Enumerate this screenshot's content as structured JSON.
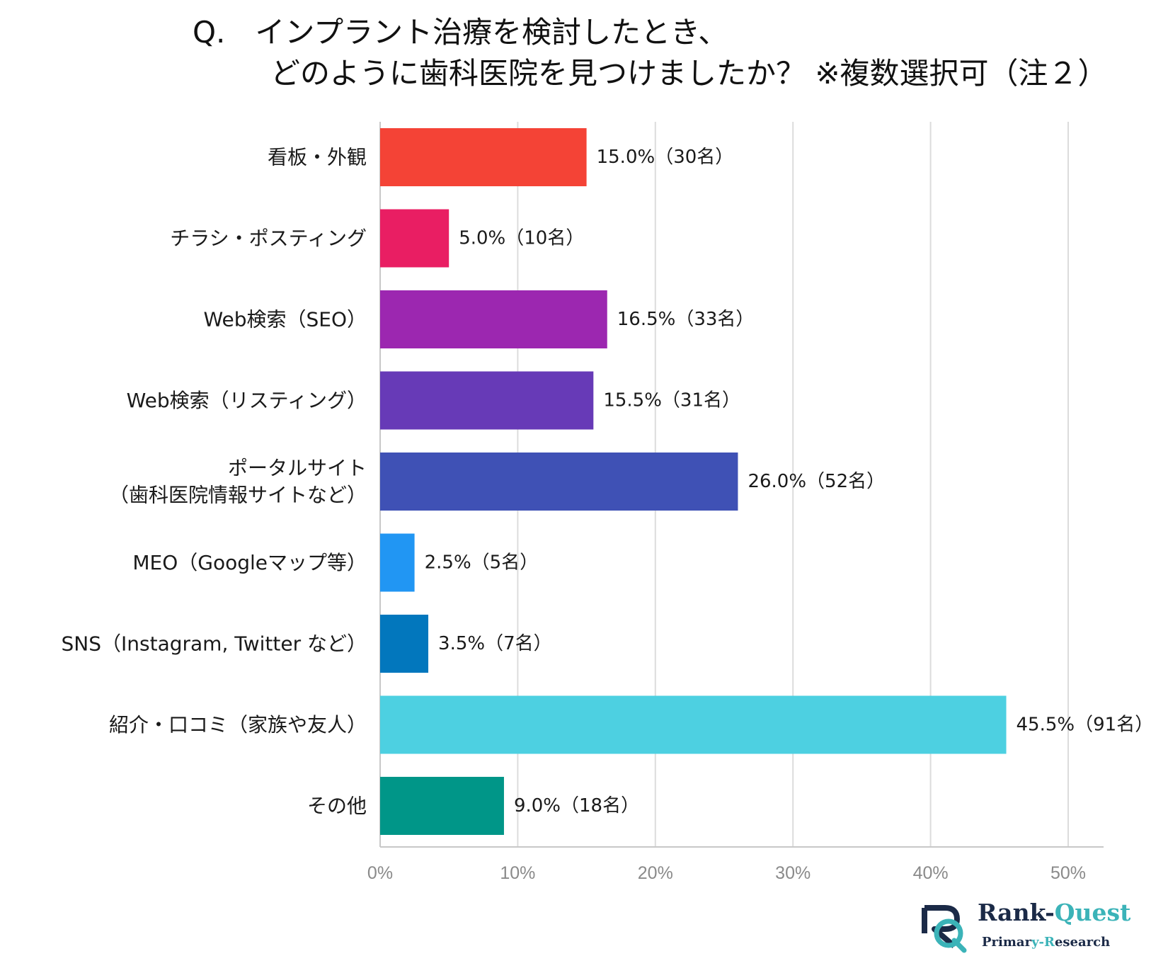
{
  "title": {
    "line1": "Q.　インプラント治療を検討したとき、",
    "line2": "どのように歯科医院を見つけましたか？ ※複数選択可（注２）"
  },
  "chart_data": {
    "type": "bar",
    "orientation": "horizontal",
    "title": "Q.　インプラント治療を検討したとき、どのように歯科医院を見つけましたか？ ※複数選択可（注２）",
    "xlabel": "",
    "ylabel": "",
    "xlim": [
      0,
      50
    ],
    "grid": true,
    "ticks": [
      "0%",
      "10%",
      "20%",
      "30%",
      "40%",
      "50%"
    ],
    "tick_values": [
      0,
      10,
      20,
      30,
      40,
      50
    ],
    "categories": [
      [
        "看板・外観"
      ],
      [
        "チラシ・ポスティング"
      ],
      [
        "Web検索（SEO）"
      ],
      [
        "Web検索（リスティング）"
      ],
      [
        "ポータルサイト",
        "（歯科医院情報サイトなど）"
      ],
      [
        "MEO（Googleマップ等）"
      ],
      [
        "SNS（Instagram, Twitter など）"
      ],
      [
        "紹介・口コミ（家族や友人）"
      ],
      [
        "その他"
      ]
    ],
    "values": [
      15.0,
      5.0,
      16.5,
      15.5,
      26.0,
      2.5,
      3.5,
      45.5,
      9.0
    ],
    "value_labels": [
      "15.0%（30名）",
      "5.0%（10名）",
      "16.5%（33名）",
      "15.5%（31名）",
      "26.0%（52名）",
      "2.5%（5名）",
      "3.5%（7名）",
      "45.5%（91名）",
      "9.0%（18名）"
    ],
    "colors": [
      "#f44336",
      "#e91e63",
      "#9c27b0",
      "#673ab7",
      "#3f51b5",
      "#2196f3",
      "#0277bd",
      "#4dd0e1",
      "#009688"
    ]
  },
  "logo": {
    "name_part1": "Rank-",
    "name_part2": "Quest",
    "sub_part1": "Primar",
    "sub_part2": "y-R",
    "sub_part3": "esearch",
    "colors": {
      "navy": "#1b2a47",
      "teal": "#3bb3b8"
    }
  }
}
